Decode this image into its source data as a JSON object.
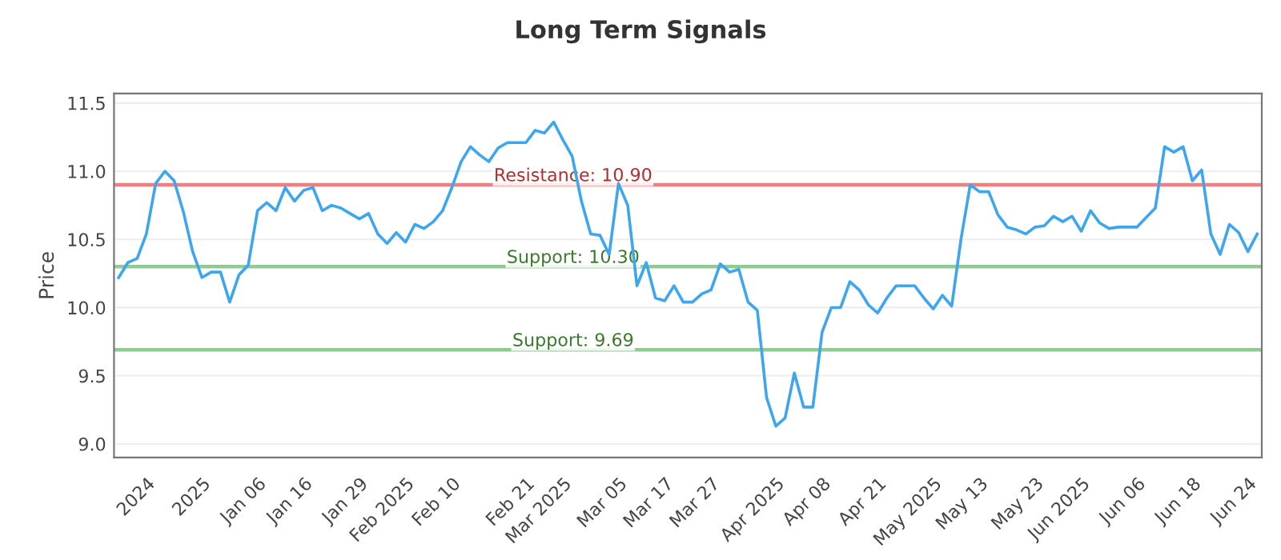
{
  "chart_data": {
    "type": "line",
    "title": "Long Term Signals",
    "ylabel": "Price",
    "categories": [
      null,
      null,
      null,
      "2024",
      null,
      null,
      null,
      null,
      null,
      "2025",
      null,
      null,
      null,
      null,
      null,
      "Jan 06",
      null,
      null,
      null,
      null,
      "Jan 16",
      null,
      null,
      null,
      null,
      null,
      "Jan 29",
      null,
      null,
      null,
      null,
      "Feb 2025",
      null,
      null,
      null,
      null,
      "Feb 10",
      null,
      null,
      null,
      null,
      null,
      null,
      null,
      "Feb 21",
      null,
      null,
      null,
      "Mar 2025",
      null,
      null,
      null,
      null,
      null,
      "Mar 05",
      null,
      null,
      null,
      null,
      "Mar 17",
      null,
      null,
      null,
      null,
      "Mar 27",
      null,
      null,
      null,
      null,
      null,
      null,
      "Apr 2025",
      null,
      null,
      null,
      null,
      "Apr 08",
      null,
      null,
      null,
      null,
      null,
      "Apr 21",
      null,
      null,
      null,
      null,
      null,
      "May 2025",
      null,
      null,
      null,
      null,
      "May 13",
      null,
      null,
      null,
      null,
      null,
      "May 23",
      null,
      null,
      null,
      null,
      "Jun 2025",
      null,
      null,
      null,
      null,
      null,
      "Jun 06",
      null,
      null,
      null,
      null,
      null,
      "Jun 18",
      null,
      null,
      null,
      null,
      null,
      "Jun 24",
      null
    ],
    "series": [
      {
        "color": "#3ea6ee",
        "values": [
          10.22,
          10.33,
          10.36,
          10.54,
          10.91,
          11.0,
          10.93,
          10.7,
          10.41,
          10.22,
          10.26,
          10.26,
          10.04,
          10.24,
          10.31,
          10.71,
          10.77,
          10.71,
          10.88,
          10.78,
          10.86,
          10.88,
          10.71,
          10.75,
          10.73,
          10.69,
          10.65,
          10.69,
          10.54,
          10.47,
          10.55,
          10.48,
          10.61,
          10.58,
          10.63,
          10.71,
          10.88,
          11.07,
          11.18,
          11.12,
          11.07,
          11.17,
          11.21,
          11.21,
          11.21,
          11.3,
          11.28,
          11.36,
          11.23,
          11.11,
          10.78,
          10.54,
          10.53,
          10.39,
          10.91,
          10.75,
          10.16,
          10.33,
          10.07,
          10.05,
          10.16,
          10.04,
          10.04,
          10.1,
          10.13,
          10.32,
          10.26,
          10.28,
          10.04,
          9.98,
          9.34,
          9.13,
          9.19,
          9.52,
          9.27,
          9.27,
          9.82,
          10.0,
          10.0,
          10.19,
          10.13,
          10.02,
          9.96,
          10.07,
          10.16,
          10.16,
          10.16,
          10.07,
          9.99,
          10.09,
          10.01,
          10.5,
          10.9,
          10.85,
          10.85,
          10.68,
          10.59,
          10.57,
          10.54,
          10.59,
          10.6,
          10.67,
          10.63,
          10.67,
          10.56,
          10.71,
          10.62,
          10.58,
          10.59,
          10.59,
          10.59,
          10.66,
          10.73,
          11.18,
          11.14,
          11.18,
          10.93,
          11.01,
          10.54,
          10.39,
          10.61,
          10.55,
          10.41,
          10.54
        ]
      }
    ],
    "ylim": [
      8.9,
      11.57
    ],
    "yticks": [
      {
        "value": 9.0,
        "label": "9.0"
      },
      {
        "value": 9.5,
        "label": "9.5"
      },
      {
        "value": 10.0,
        "label": "10.0"
      },
      {
        "value": 10.5,
        "label": "10.5"
      },
      {
        "value": 11.0,
        "label": "11.0"
      },
      {
        "value": 11.5,
        "label": "11.5"
      }
    ],
    "grid": "y",
    "marker": "none",
    "line_style": "solid",
    "ref_lines": [
      {
        "axis": "y",
        "value": 10.9,
        "label": "Resistance: 10.90",
        "color": "#f08080"
      },
      {
        "axis": "y",
        "value": 10.3,
        "label": "Support: 10.30",
        "color": "#8fcc8f"
      },
      {
        "axis": "y",
        "value": 9.69,
        "label": "Support: 9.69",
        "color": "#8fcc8f"
      }
    ]
  }
}
